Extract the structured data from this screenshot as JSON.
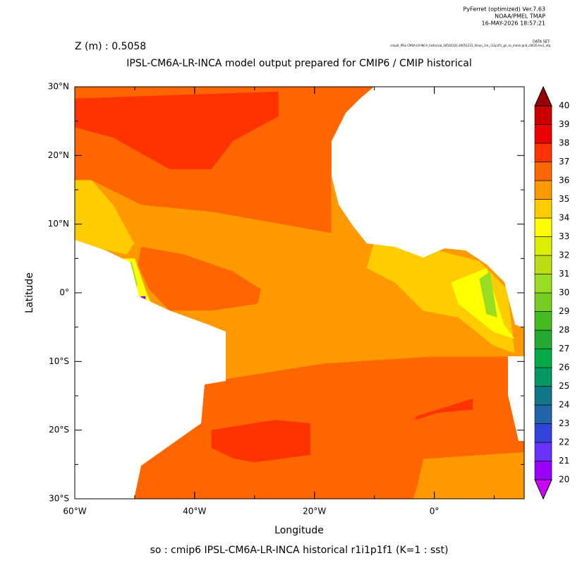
{
  "header": {
    "software": "PyFerret (optimized) Ver.7.63",
    "org": "NOAA/PMEL TMAP",
    "date": "16-MAY-2026 18:57:21",
    "dataset_label": "DATA SET:",
    "dataset": "cmip6_IPSL-CM6A-LR-INCA_historical_18500101-20051231_0mon_1m_r1i1p1f1_gn_so_mean.grid_c6035-lev1_afg",
    "depth": "Z (m) : 0.5058"
  },
  "chart_data": {
    "type": "map",
    "title": "IPSL-CM6A-LR-INCA model output prepared for CMIP6 / CMIP historical",
    "x_label": "Longitude",
    "y_label": "Latitude",
    "footer": "so : cmip6 IPSL-CM6A-LR-INCA historical r1i1p1f1   (K=1 : sst)",
    "xlim": [
      -60,
      15
    ],
    "ylim": [
      -30,
      30
    ],
    "xticks": [
      {
        "value": -60,
        "label": "60°W"
      },
      {
        "value": -40,
        "label": "40°W"
      },
      {
        "value": -20,
        "label": "20°W"
      },
      {
        "value": 0,
        "label": "0°"
      }
    ],
    "yticks": [
      {
        "value": -30,
        "label": "30°S"
      },
      {
        "value": -20,
        "label": "20°S"
      },
      {
        "value": -10,
        "label": "10°S"
      },
      {
        "value": 0,
        "label": "0°"
      },
      {
        "value": 10,
        "label": "10°N"
      },
      {
        "value": 20,
        "label": "20°N"
      },
      {
        "value": 30,
        "label": "30°N"
      }
    ],
    "colorbar": {
      "levels": [
        20,
        21,
        22,
        23,
        24,
        25,
        26,
        27,
        28,
        29,
        30,
        31,
        32,
        33,
        34,
        35,
        36,
        37,
        38,
        39,
        40
      ],
      "colors": [
        "#9900ff",
        "#6633ff",
        "#3344dd",
        "#2266aa",
        "#117788",
        "#009966",
        "#00aa44",
        "#22aa33",
        "#44bb22",
        "#77cc22",
        "#99dd22",
        "#bbdd11",
        "#ddee00",
        "#ffff00",
        "#ffcc00",
        "#ff9900",
        "#ff6600",
        "#ff3300",
        "#ee0000",
        "#cc0000"
      ],
      "under": "#cc00ff",
      "over": "#990000"
    },
    "regions": [
      {
        "value": 35.5,
        "polygon": [
          [
            -60,
            -30
          ],
          [
            15,
            -30
          ],
          [
            15,
            30
          ],
          [
            -60,
            30
          ]
        ]
      },
      {
        "value": 36.5,
        "polygon": [
          [
            -60,
            30
          ],
          [
            -10.1,
            30
          ],
          [
            -17.2,
            22.1
          ],
          [
            -17.2,
            8.7
          ],
          [
            -24.2,
            9.8
          ],
          [
            -37.2,
            11.8
          ],
          [
            -48.9,
            12.8
          ],
          [
            -57.2,
            16.4
          ],
          [
            -60,
            16.4
          ]
        ]
      },
      {
        "value": 37.5,
        "polygon": [
          [
            -60,
            28.3
          ],
          [
            -26,
            29.3
          ],
          [
            -26,
            25.7
          ],
          [
            -33.6,
            22.1
          ],
          [
            -37.2,
            18
          ],
          [
            -44.2,
            18
          ],
          [
            -53.6,
            22.6
          ],
          [
            -60,
            24.1
          ]
        ]
      },
      {
        "value": 34.5,
        "polygon": [
          [
            -60,
            16.4
          ],
          [
            -57.2,
            16.4
          ],
          [
            -53.6,
            12.8
          ],
          [
            -50.1,
            7.2
          ],
          [
            -51.3,
            5.6
          ],
          [
            -57.2,
            6.7
          ],
          [
            -60,
            7.7
          ]
        ]
      },
      {
        "value": 36.5,
        "polygon": [
          [
            -48.9,
            6.7
          ],
          [
            -41.8,
            5.6
          ],
          [
            -33.6,
            3.1
          ],
          [
            -28.9,
            0.5
          ],
          [
            -29.5,
            -1.6
          ],
          [
            -37.2,
            -2.6
          ],
          [
            -44.2,
            -2.6
          ],
          [
            -47.6,
            0.5
          ],
          [
            -49.5,
            4.1
          ]
        ]
      },
      {
        "value": 33.5,
        "polygon": [
          [
            -52,
            5
          ],
          [
            -50,
            5
          ],
          [
            -48,
            0
          ],
          [
            -47,
            -2
          ],
          [
            -49,
            -2
          ]
        ]
      },
      {
        "value": 30.5,
        "polygon": [
          [
            -51.5,
            4.5
          ],
          [
            -50.5,
            4.5
          ],
          [
            -49.5,
            1
          ],
          [
            -51,
            1.5
          ]
        ]
      },
      {
        "value": 24.5,
        "polygon": [
          [
            -51,
            2
          ],
          [
            -50,
            2
          ],
          [
            -49.8,
            -0.5
          ],
          [
            -50.8,
            -0.5
          ]
        ]
      },
      {
        "value": 20.5,
        "polygon": [
          [
            -49,
            -0.5
          ],
          [
            -48.2,
            -0.5
          ],
          [
            -48.2,
            -1.2
          ],
          [
            -49,
            -1.2
          ]
        ]
      },
      {
        "value": 36.5,
        "polygon": [
          [
            -37.2,
            -12.9
          ],
          [
            -18.4,
            -10.3
          ],
          [
            -0.5,
            -9.3
          ],
          [
            12.2,
            -9.3
          ],
          [
            15,
            -22.1
          ],
          [
            15,
            -30
          ],
          [
            -50.1,
            -30
          ],
          [
            -48.9,
            -25.2
          ],
          [
            -38.9,
            -19
          ],
          [
            -38.4,
            -13.4
          ]
        ]
      },
      {
        "value": 35.5,
        "polygon": [
          [
            -1.8,
            -24.2
          ],
          [
            15,
            -23.2
          ],
          [
            15,
            -30
          ],
          [
            -3.5,
            -30
          ],
          [
            -2.9,
            -28.3
          ]
        ]
      },
      {
        "value": 37.5,
        "polygon": [
          [
            -37.2,
            -20
          ],
          [
            -26.6,
            -18.5
          ],
          [
            -20.7,
            -19
          ],
          [
            -20.7,
            -23.6
          ],
          [
            -30.1,
            -24.7
          ],
          [
            -33.6,
            -24.1
          ],
          [
            -37.2,
            -22.6
          ]
        ]
      },
      {
        "value": 37.5,
        "polygon": [
          [
            -3.1,
            -18
          ],
          [
            6.4,
            -15.4
          ],
          [
            6.4,
            -17
          ],
          [
            0.5,
            -17.5
          ],
          [
            -3.1,
            -18.5
          ]
        ]
      },
      {
        "value": 34.5,
        "polygon": [
          [
            -10.1,
            7.2
          ],
          [
            -1.9,
            6.7
          ],
          [
            7.5,
            4.6
          ],
          [
            12.2,
            0.5
          ],
          [
            13.4,
            -8.8
          ],
          [
            9.9,
            -7.7
          ],
          [
            4,
            -3.6
          ],
          [
            -1.9,
            -2.6
          ],
          [
            -6.6,
            1.5
          ],
          [
            -11.3,
            3.6
          ]
        ]
      },
      {
        "value": 33.5,
        "polygon": [
          [
            2.8,
            1.5
          ],
          [
            8.7,
            3.6
          ],
          [
            11.6,
            -4.6
          ],
          [
            13.4,
            -6.7
          ],
          [
            9.9,
            -5.7
          ],
          [
            4,
            -1.6
          ]
        ]
      },
      {
        "value": 30.5,
        "polygon": [
          [
            7.5,
            2
          ],
          [
            9.3,
            3.1
          ],
          [
            10.5,
            -3.6
          ],
          [
            8.7,
            -3.1
          ]
        ]
      }
    ]
  }
}
